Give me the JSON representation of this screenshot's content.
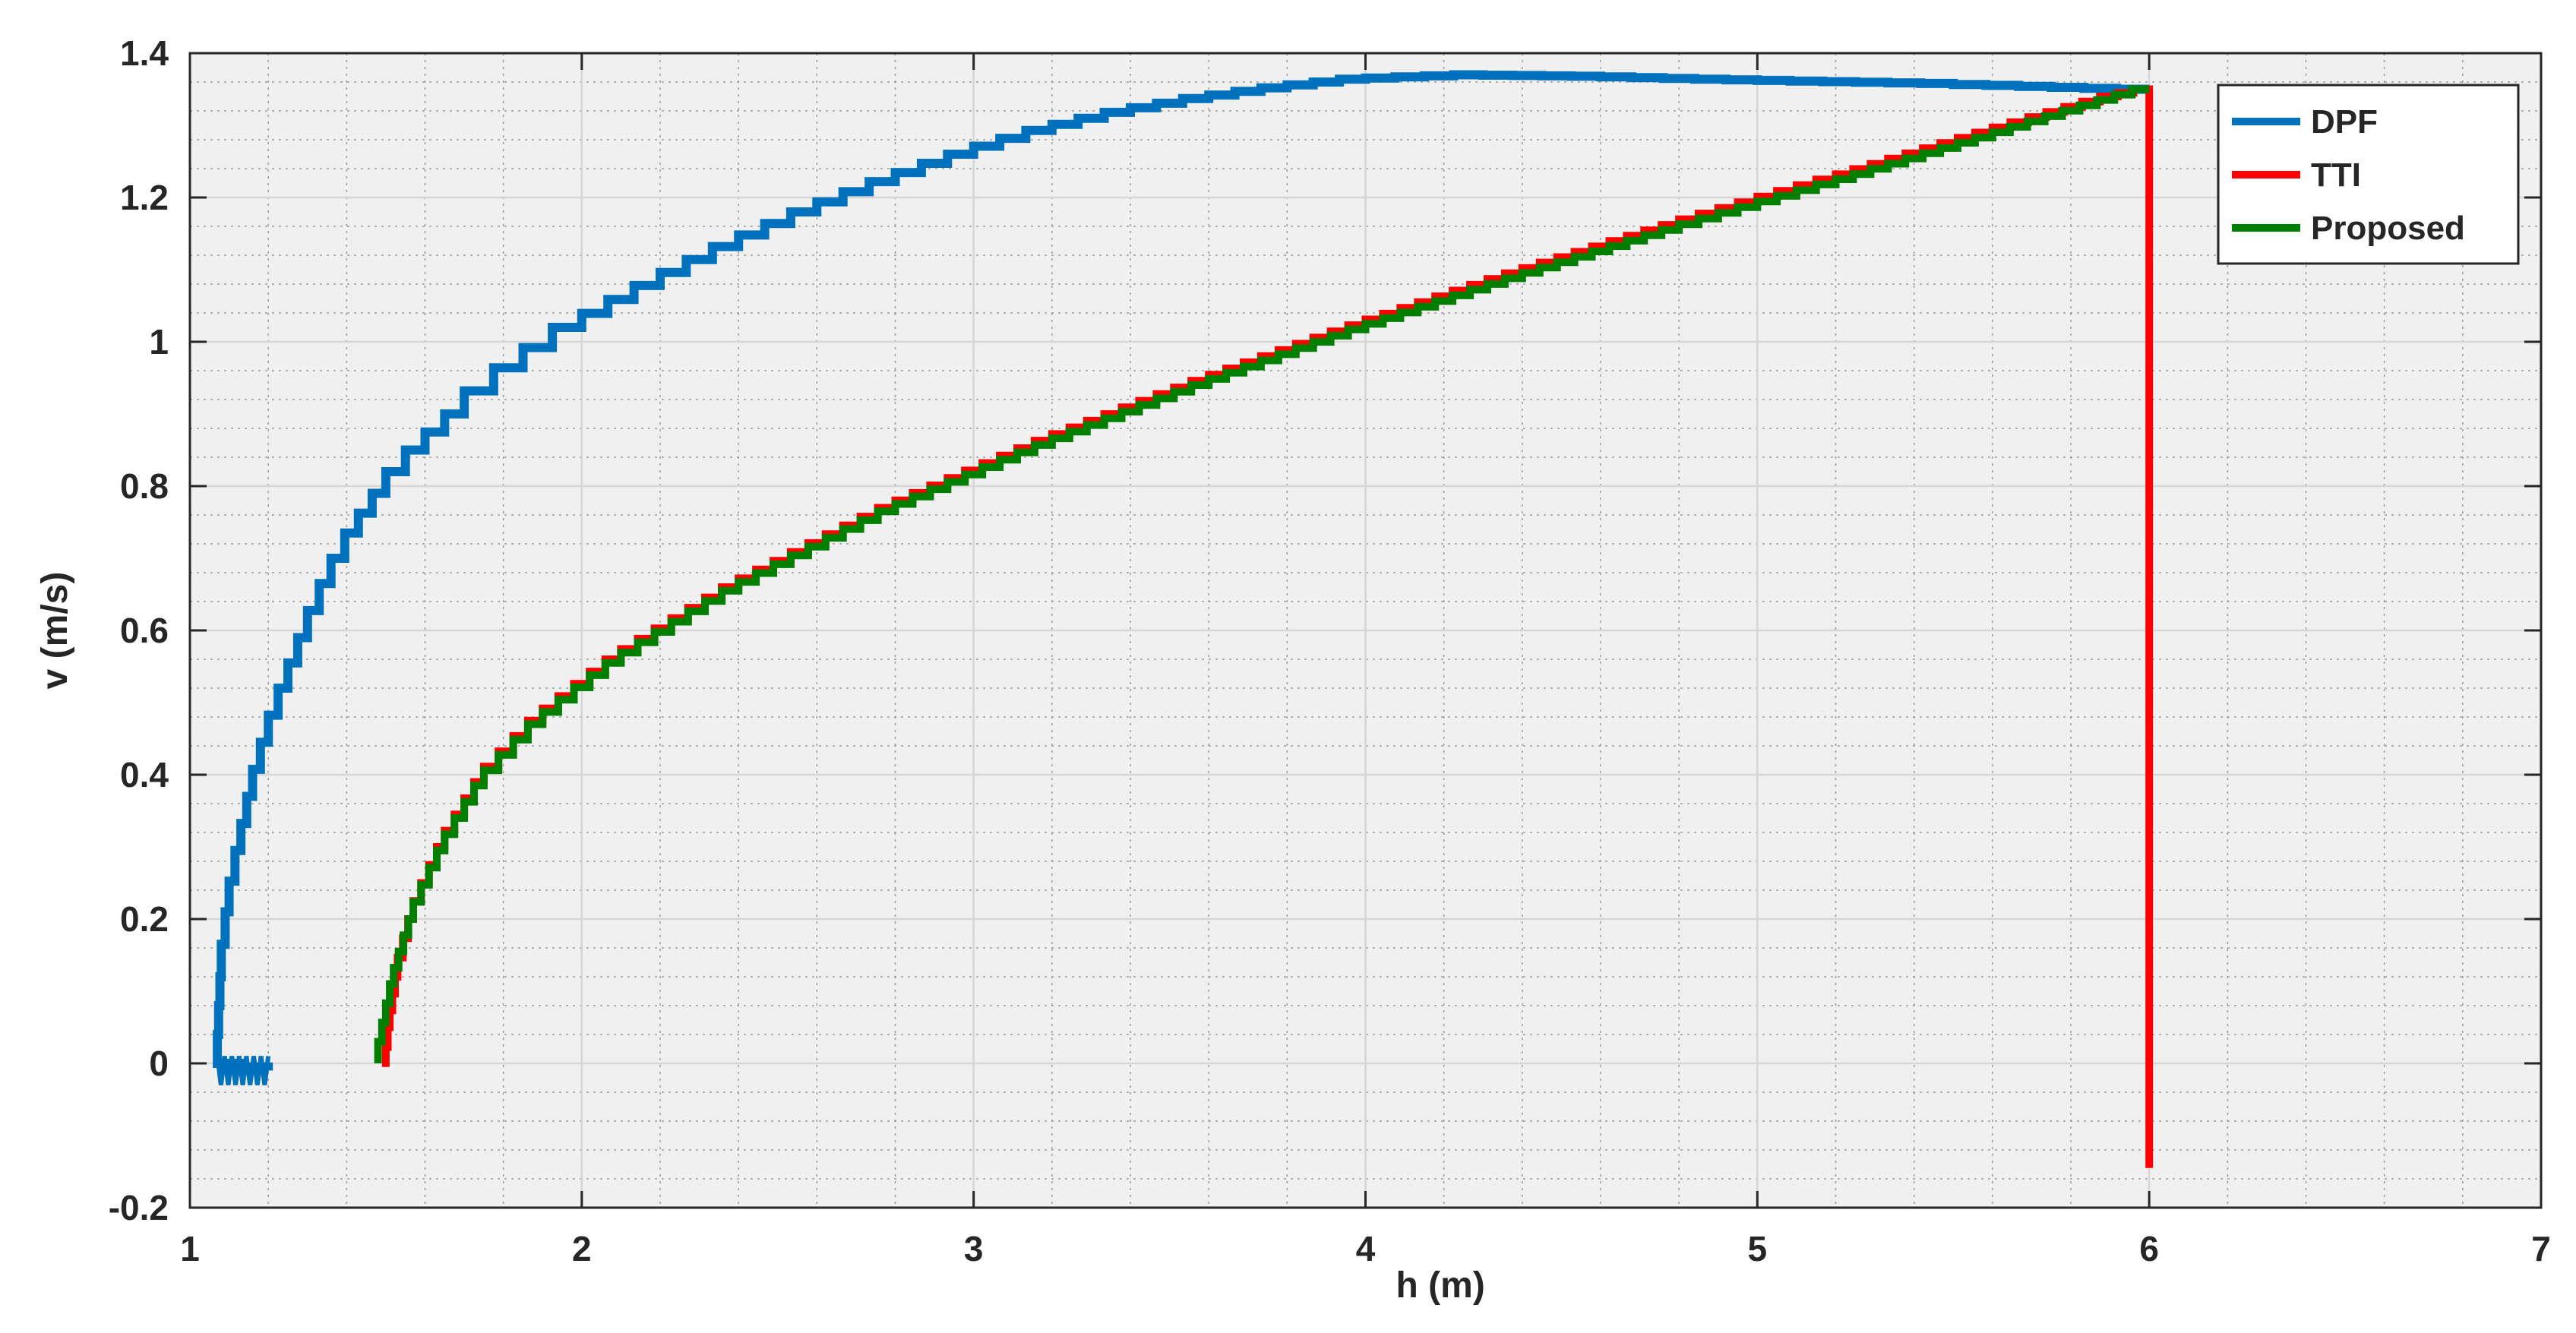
{
  "chart_data": {
    "type": "line",
    "title": "",
    "xlabel": "h (m)",
    "ylabel": "v (m/s)",
    "xlim": [
      1,
      7
    ],
    "ylim": [
      -0.2,
      1.4
    ],
    "x_ticks": [
      "1",
      "2",
      "3",
      "4",
      "5",
      "6",
      "7"
    ],
    "y_ticks": [
      "-0.2",
      "0",
      "0.2",
      "0.4",
      "0.6",
      "0.8",
      "1",
      "1.2",
      "1.4"
    ],
    "grid": "major and minor (dotted)",
    "legend_position": "top-right",
    "series": [
      {
        "name": "DPF",
        "color": "#0072BD",
        "x": [
          6.0,
          5.5,
          5.0,
          4.6,
          4.3,
          4.0,
          3.8,
          3.6,
          3.4,
          3.2,
          3.0,
          2.8,
          2.6,
          2.4,
          2.2,
          2.0,
          1.85,
          1.7,
          1.6,
          1.5,
          1.43,
          1.36,
          1.3,
          1.25,
          1.2,
          1.16,
          1.13,
          1.1,
          1.08,
          1.07,
          1.2
        ],
        "y": [
          1.35,
          1.358,
          1.363,
          1.368,
          1.37,
          1.364,
          1.352,
          1.337,
          1.318,
          1.293,
          1.26,
          1.222,
          1.18,
          1.132,
          1.078,
          1.02,
          0.964,
          0.9,
          0.85,
          0.79,
          0.735,
          0.665,
          0.59,
          0.52,
          0.445,
          0.37,
          0.295,
          0.21,
          0.12,
          0.0,
          -0.01
        ]
      },
      {
        "name": "TTI",
        "color": "#FF0000",
        "x": [
          6.0,
          6.0,
          5.92,
          5.6,
          5.2,
          4.8,
          4.4,
          4.0,
          3.6,
          3.2,
          2.8,
          2.4,
          2.1,
          1.9,
          1.75,
          1.65,
          1.57,
          1.53,
          1.51,
          1.5
        ],
        "y": [
          -0.145,
          1.35,
          1.34,
          1.29,
          1.225,
          1.162,
          1.095,
          1.023,
          0.946,
          0.863,
          0.77,
          0.66,
          0.56,
          0.475,
          0.39,
          0.3,
          0.2,
          0.12,
          0.05,
          -0.005
        ]
      },
      {
        "name": "Proposed",
        "color": "#007F00",
        "x": [
          6.0,
          5.6,
          5.2,
          4.8,
          4.4,
          4.0,
          3.6,
          3.2,
          2.8,
          2.4,
          2.1,
          1.9,
          1.75,
          1.65,
          1.57,
          1.52,
          1.49,
          1.48
        ],
        "y": [
          1.35,
          1.283,
          1.218,
          1.155,
          1.088,
          1.017,
          0.94,
          0.857,
          0.765,
          0.655,
          0.555,
          0.47,
          0.385,
          0.295,
          0.2,
          0.11,
          0.03,
          0.0
        ]
      }
    ]
  }
}
